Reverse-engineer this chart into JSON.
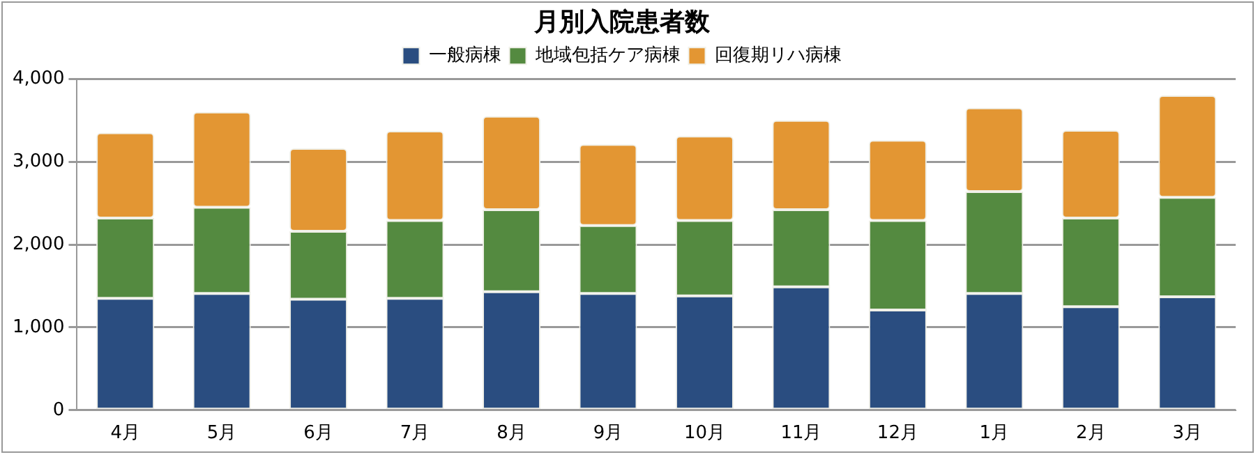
{
  "chart_data": {
    "type": "bar",
    "title": "月別入院患者数",
    "stacked": true,
    "categories": [
      "4月",
      "5月",
      "6月",
      "7月",
      "8月",
      "9月",
      "10月",
      "11月",
      "12月",
      "1月",
      "2月",
      "3月"
    ],
    "series": [
      {
        "name": "一般病棟",
        "color": "#2a4d80",
        "values": [
          1350,
          1410,
          1340,
          1350,
          1430,
          1410,
          1380,
          1490,
          1210,
          1410,
          1250,
          1370
        ]
      },
      {
        "name": "地域包括ケア病棟",
        "color": "#548a40",
        "values": [
          970,
          1040,
          820,
          940,
          990,
          820,
          910,
          930,
          1080,
          1230,
          1070,
          1200
        ]
      },
      {
        "name": "回復期リハ病棟",
        "color": "#e39633",
        "values": [
          1030,
          1150,
          1000,
          1080,
          1130,
          980,
          1020,
          1080,
          970,
          1010,
          1060,
          1230
        ]
      }
    ],
    "ylim": [
      0,
      4000
    ],
    "yticks": [
      {
        "value": 0,
        "label": "0"
      },
      {
        "value": 1000,
        "label": "1,000"
      },
      {
        "value": 2000,
        "label": "2,000"
      },
      {
        "value": 3000,
        "label": "3,000"
      },
      {
        "value": 4000,
        "label": "4,000"
      }
    ],
    "grid": "y",
    "legend": "top"
  }
}
